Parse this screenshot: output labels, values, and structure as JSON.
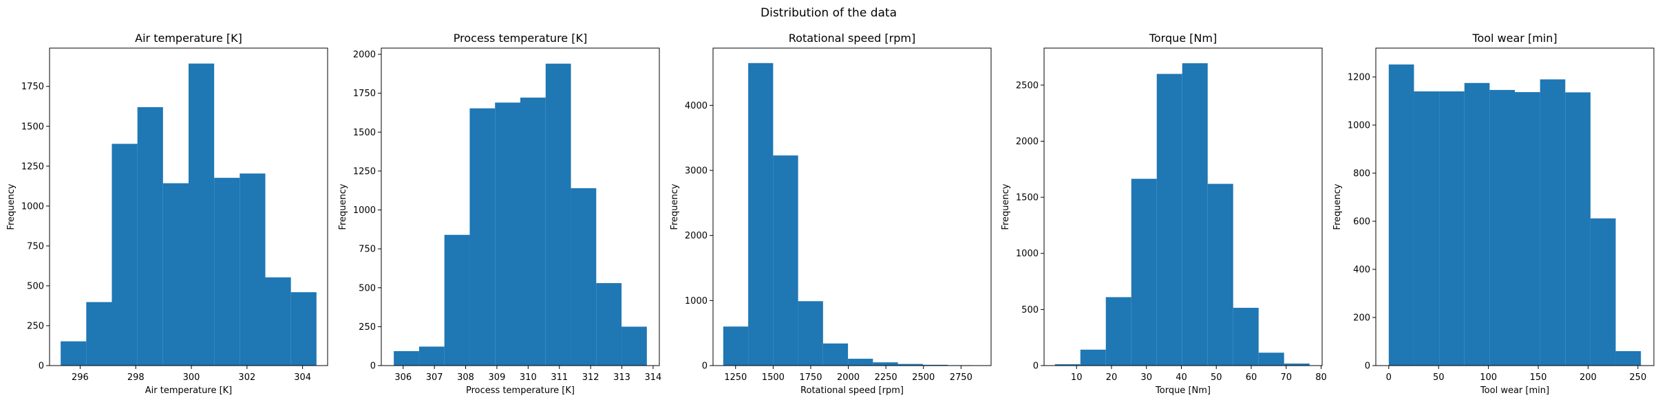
{
  "figure": {
    "suptitle": "Distribution of the data",
    "bar_color": "#1f77b4"
  },
  "chart_data": [
    {
      "type": "bar",
      "title": "Air temperature [K]",
      "xlabel": "Air temperature [K]",
      "ylabel": "Frequency",
      "xlim": [
        294.9,
        304.9
      ],
      "ylim": [
        0,
        1990
      ],
      "xticks": [
        296,
        298,
        300,
        302,
        304
      ],
      "yticks": [
        0,
        250,
        500,
        750,
        1000,
        1250,
        1500,
        1750
      ],
      "bin_edges": [
        295.3,
        296.22,
        297.14,
        298.06,
        298.98,
        299.9,
        300.82,
        301.74,
        302.66,
        303.58,
        304.5
      ],
      "values": [
        152,
        398,
        1390,
        1620,
        1143,
        1893,
        1177,
        1204,
        553,
        460
      ]
    },
    {
      "type": "bar",
      "title": "Process temperature [K]",
      "xlabel": "Process temperature [K]",
      "ylabel": "Frequency",
      "xlim": [
        305.3,
        314.2
      ],
      "ylim": [
        0,
        2040
      ],
      "xticks": [
        306,
        307,
        308,
        309,
        310,
        311,
        312,
        313,
        314
      ],
      "yticks": [
        0,
        250,
        500,
        750,
        1000,
        1250,
        1500,
        1750,
        2000
      ],
      "bin_edges": [
        305.7,
        306.51,
        307.32,
        308.13,
        308.94,
        309.75,
        310.56,
        311.37,
        312.18,
        312.99,
        313.8
      ],
      "values": [
        93,
        122,
        840,
        1653,
        1690,
        1722,
        1940,
        1140,
        530,
        250
      ]
    },
    {
      "type": "bar",
      "title": "Rotational speed [rpm]",
      "xlabel": "Rotational speed [rpm]",
      "ylabel": "Frequency",
      "xlim": [
        1100,
        2950
      ],
      "ylim": [
        0,
        4880
      ],
      "xticks": [
        1250,
        1500,
        1750,
        2000,
        2250,
        2500,
        2750
      ],
      "yticks": [
        0,
        1000,
        2000,
        3000,
        4000
      ],
      "bin_edges": [
        1168,
        1334,
        1500,
        1666,
        1832,
        1998,
        2164,
        2330,
        2496,
        2662,
        2828,
        2900
      ],
      "values": [
        600,
        4650,
        3230,
        990,
        340,
        105,
        50,
        25,
        12,
        6,
        3
      ]
    },
    {
      "type": "bar",
      "title": "Torque [Nm]",
      "xlabel": "Torque [Nm]",
      "ylabel": "Frequency",
      "xlim": [
        0.7,
        80.3
      ],
      "ylim": [
        0,
        2830
      ],
      "xticks": [
        10,
        20,
        30,
        40,
        50,
        60,
        70,
        80
      ],
      "yticks": [
        0,
        500,
        1000,
        1500,
        2000,
        2500
      ],
      "bin_edges": [
        3.8,
        11.09,
        18.38,
        25.67,
        32.96,
        40.25,
        47.54,
        54.83,
        62.12,
        69.41,
        76.7
      ],
      "values": [
        12,
        142,
        610,
        1665,
        2600,
        2695,
        1620,
        515,
        115,
        18
      ]
    },
    {
      "type": "bar",
      "title": "Tool wear [min]",
      "xlabel": "Tool wear [min]",
      "ylabel": "Frequency",
      "xlim": [
        -13,
        266
      ],
      "ylim": [
        0,
        1320
      ],
      "xticks": [
        0,
        50,
        100,
        150,
        200,
        250
      ],
      "yticks": [
        0,
        200,
        400,
        600,
        800,
        1000,
        1200
      ],
      "bin_edges": [
        0,
        25.3,
        50.6,
        75.9,
        101.2,
        126.5,
        151.8,
        177.1,
        202.4,
        227.7,
        253
      ],
      "values": [
        1252,
        1140,
        1140,
        1175,
        1146,
        1137,
        1190,
        1136,
        612,
        60
      ]
    }
  ]
}
